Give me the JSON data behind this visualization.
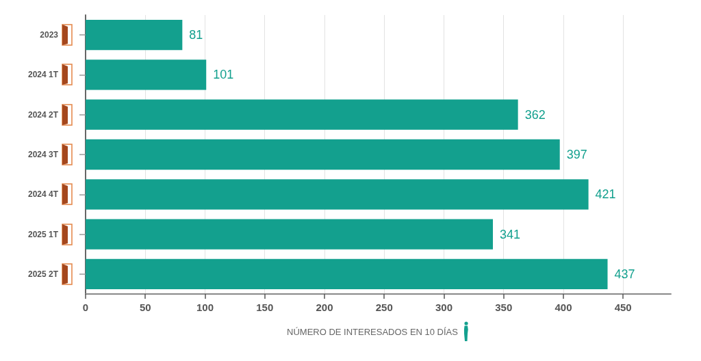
{
  "chart_data": {
    "type": "bar",
    "orientation": "horizontal",
    "categories": [
      "2023",
      "2024 1T",
      "2024 2T",
      "2024 3T",
      "2024 4T",
      "2025 1T",
      "2025 2T"
    ],
    "values": [
      81,
      101,
      362,
      397,
      421,
      341,
      437
    ],
    "color": "#13a08e",
    "xlim": [
      0,
      490
    ],
    "xticks": [
      0,
      50,
      100,
      150,
      200,
      250,
      300,
      350,
      400,
      450
    ],
    "xlabel": "NÚMERO DE INTERESADOS EN 10 DÍAS",
    "data_labels": true,
    "grid": "x"
  }
}
